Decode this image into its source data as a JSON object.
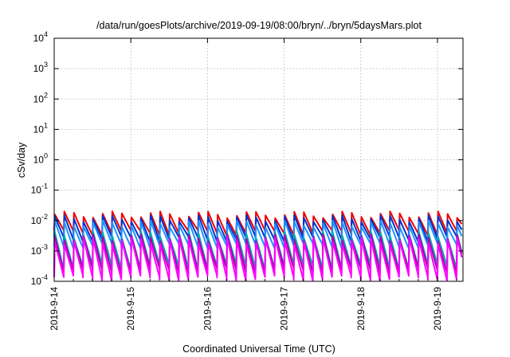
{
  "chart_data": {
    "type": "line",
    "title": "/data/run/goesPlots/archive/2019-09-19/08:00/bryn/../bryn/5daysMars.plot",
    "xlabel": "Coordinated Universal Time (UTC)",
    "ylabel": "cSv/day",
    "yscale": "log",
    "ylim": [
      0.0001,
      10000
    ],
    "xlim": [
      "2019-09-14",
      "2019-09-19 08:00"
    ],
    "grid": true,
    "x_ticks": [
      "2019-9-14",
      "2019-9-15",
      "2019-9-16",
      "2019-9-17",
      "2019-9-18",
      "2019-9-19"
    ],
    "y_ticks": [
      {
        "base": "10",
        "exp": "-4"
      },
      {
        "base": "10",
        "exp": "-3"
      },
      {
        "base": "10",
        "exp": "-2"
      },
      {
        "base": "10",
        "exp": "-1"
      },
      {
        "base": "10",
        "exp": "0"
      },
      {
        "base": "10",
        "exp": "1"
      },
      {
        "base": "10",
        "exp": "2"
      },
      {
        "base": "10",
        "exp": "3"
      },
      {
        "base": "10",
        "exp": "4"
      }
    ],
    "sawtooth_period_hours": 3,
    "series": [
      {
        "color": "#ee0000",
        "peak": 0.016,
        "trough": 0.004
      },
      {
        "color": "#0033cc",
        "peak": 0.012,
        "trough": 0.0025
      },
      {
        "color": "#1e90ff",
        "peak": 0.008,
        "trough": 0.0015
      },
      {
        "color": "#00aaaa",
        "peak": 0.0035,
        "trough": 0.0003
      },
      {
        "color": "#aa00aa",
        "peak": 0.0028,
        "trough": 0.00022
      },
      {
        "color": "#ff00ff",
        "peak": 0.0022,
        "trough": 0.00013
      }
    ]
  }
}
